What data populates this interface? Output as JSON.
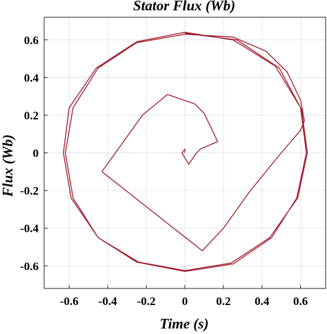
{
  "chart_data": {
    "type": "line",
    "title": "Stator Flux (Wb)",
    "xlabel": "Time (s)",
    "ylabel": "Flux (Wb)",
    "xlim": [
      -0.73,
      0.73
    ],
    "ylim": [
      -0.72,
      0.72
    ],
    "grid": true,
    "legend": "none",
    "line_color": "#a01c2c",
    "x_ticks": [
      -0.6,
      -0.4,
      -0.2,
      0,
      0.2,
      0.4,
      0.6
    ],
    "x_tick_labels": [
      "-0.6",
      "-0.4",
      "-0.2",
      "0",
      "0.2",
      "0.4",
      "0.6"
    ],
    "y_ticks": [
      -0.6,
      -0.4,
      -0.2,
      0,
      0.2,
      0.4,
      0.6
    ],
    "y_tick_labels": [
      "-0.6",
      "-0.4",
      "-0.2",
      "0",
      "0.2",
      "0.4",
      "0.6"
    ],
    "series": [
      {
        "values": [
          [
            0.0,
            0.0
          ],
          [
            0.0,
            0.02
          ],
          [
            -0.015,
            0.0
          ],
          [
            0.02,
            -0.06
          ],
          [
            0.06,
            0.0
          ],
          [
            0.08,
            0.02
          ],
          [
            0.17,
            0.06
          ],
          [
            0.1,
            0.21
          ],
          [
            0.05,
            0.26
          ],
          [
            -0.09,
            0.31
          ],
          [
            -0.22,
            0.2
          ],
          [
            -0.43,
            -0.1
          ],
          [
            0.09,
            -0.52
          ],
          [
            0.2,
            -0.4
          ],
          [
            0.34,
            -0.2
          ],
          [
            0.5,
            0.0
          ],
          [
            0.6,
            0.12
          ],
          [
            0.62,
            0.17
          ],
          [
            0.6,
            0.28
          ],
          [
            0.53,
            0.43
          ],
          [
            0.42,
            0.54
          ],
          [
            0.25,
            0.615
          ],
          [
            0.0,
            0.63
          ],
          [
            -0.25,
            0.585
          ],
          [
            -0.45,
            0.45
          ],
          [
            -0.58,
            0.24
          ],
          [
            -0.62,
            0.0
          ],
          [
            -0.58,
            -0.24
          ],
          [
            -0.45,
            -0.45
          ],
          [
            -0.25,
            -0.58
          ],
          [
            0.0,
            -0.63
          ],
          [
            0.25,
            -0.59
          ],
          [
            0.45,
            -0.45
          ],
          [
            0.58,
            -0.24
          ],
          [
            0.63,
            0.0
          ],
          [
            0.6,
            0.24
          ],
          [
            0.47,
            0.46
          ],
          [
            0.25,
            0.6
          ],
          [
            0.0,
            0.64
          ],
          [
            -0.25,
            0.59
          ],
          [
            -0.46,
            0.45
          ],
          [
            -0.6,
            0.24
          ],
          [
            -0.63,
            0.0
          ],
          [
            -0.59,
            -0.24
          ],
          [
            -0.45,
            -0.45
          ],
          [
            -0.24,
            -0.58
          ],
          [
            0.0,
            -0.625
          ],
          [
            0.24,
            -0.585
          ],
          [
            0.44,
            -0.45
          ],
          [
            0.585,
            -0.24
          ],
          [
            0.635,
            0.0
          ],
          [
            0.605,
            0.23
          ],
          [
            0.49,
            0.45
          ],
          [
            0.27,
            0.6
          ],
          [
            0.0,
            0.635
          ]
        ]
      }
    ]
  }
}
